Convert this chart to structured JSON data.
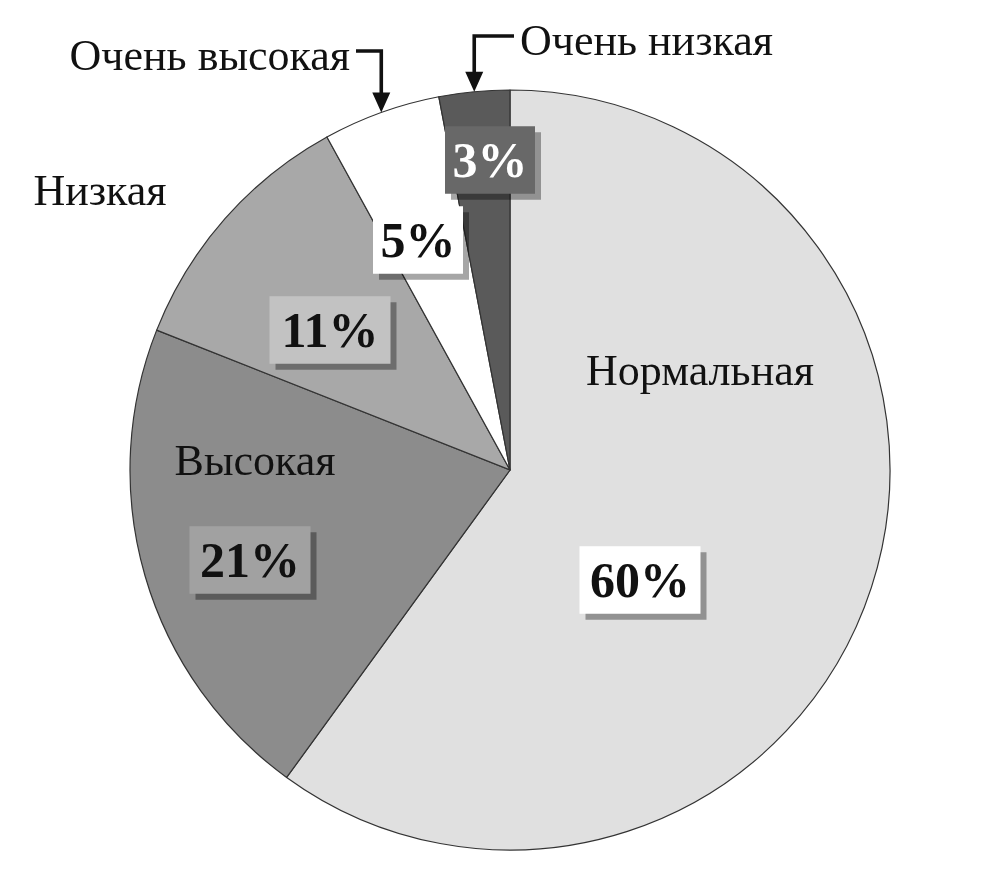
{
  "chart_data": {
    "type": "pie",
    "categories": [
      "Нормальная",
      "Высокая",
      "Низкая",
      "Очень высокая",
      "Очень низкая"
    ],
    "values": [
      60,
      21,
      11,
      5,
      3
    ],
    "colors": [
      "#e0e0e0",
      "#8c8c8c",
      "#a8a8a8",
      "#ffffff",
      "#5a5a5a"
    ],
    "value_labels": [
      "60%",
      "21%",
      "11%",
      "5%",
      "3%"
    ]
  }
}
